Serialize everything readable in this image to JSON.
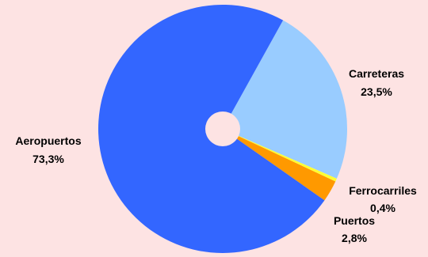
{
  "chart_data": {
    "type": "pie",
    "slices": [
      {
        "label": "Carreteras",
        "value": 23.5,
        "value_label": "23,5%",
        "color": "#99CCFF"
      },
      {
        "label": "Ferrocarriles",
        "value": 0.4,
        "value_label": "0,4%",
        "color": "#FFFF33"
      },
      {
        "label": "Puertos",
        "value": 2.8,
        "value_label": "2,8%",
        "color": "#FF9900"
      },
      {
        "label": "Aeropuertos",
        "value": 73.3,
        "value_label": "73,3%",
        "color": "#3366FF"
      }
    ],
    "center_hole": true,
    "background_color": "#FDE3E3"
  }
}
